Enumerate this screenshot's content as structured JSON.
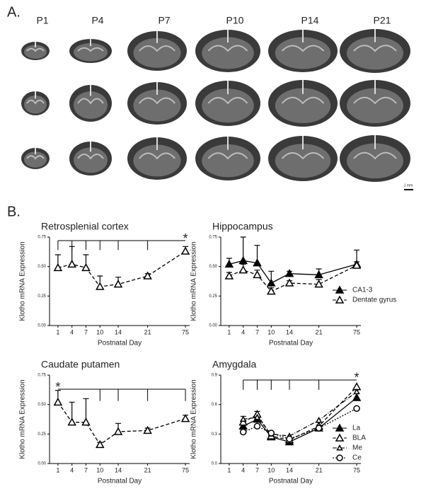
{
  "panel_a": {
    "label": "A.",
    "columns": [
      "P1",
      "P4",
      "P7",
      "P10",
      "P14",
      "P21"
    ],
    "scale_bar": "1 mm"
  },
  "panel_b_label": "B.",
  "chart_data": [
    {
      "type": "line",
      "title": "Retrosplenial cortex",
      "x_label": "Postnatal Day",
      "y_label": "Klotho mRNA Expression",
      "categories": [
        "1",
        "4",
        "7",
        "10",
        "14",
        "21",
        "75"
      ],
      "ylim": [
        0,
        0.75
      ],
      "yticks": [
        {
          "value": 0,
          "label": "0.00"
        },
        {
          "value": 0.25,
          "label": "0.25"
        },
        {
          "value": 0.5,
          "label": "0.50"
        },
        {
          "value": 0.75,
          "label": "0.75"
        }
      ],
      "annotation": "*",
      "series": [
        {
          "color": "#000000",
          "marker": "triangle-open",
          "dash": "dashed",
          "values": [
            0.49,
            0.52,
            0.49,
            0.33,
            0.35,
            0.42,
            0.63
          ],
          "errors": [
            0.11,
            0.15,
            0.11,
            0.09,
            0.06,
            0.02,
            0.04
          ]
        }
      ]
    },
    {
      "type": "line",
      "title": "Hippocampus",
      "x_label": "Postnatal Day",
      "y_label": "Klotho mRNA Expression",
      "categories": [
        "1",
        "4",
        "7",
        "10",
        "14",
        "21",
        "75"
      ],
      "ylim": [
        0,
        0.75
      ],
      "yticks": [
        {
          "value": 0,
          "label": "0.00"
        },
        {
          "value": 0.25,
          "label": "0.25"
        },
        {
          "value": 0.5,
          "label": "0.50"
        },
        {
          "value": 0.75,
          "label": "0.75"
        }
      ],
      "legend": "bottom-right",
      "series": [
        {
          "name": "CA1-3",
          "color": "#000000",
          "marker": "triangle-filled",
          "dash": "solid",
          "values": [
            0.52,
            0.55,
            0.53,
            0.36,
            0.44,
            0.43,
            0.52
          ],
          "errors": [
            0.05,
            0.2,
            0.15,
            0.1,
            0.02,
            0.05,
            0.12
          ]
        },
        {
          "name": "Dentate gyrus",
          "color": "#000000",
          "marker": "triangle-open",
          "dash": "dashed",
          "values": [
            0.42,
            0.47,
            0.43,
            0.29,
            0.36,
            0.35,
            0.51
          ],
          "errors": [
            0.03,
            0.05,
            0.04,
            0.03,
            0.02,
            0.04,
            0.03
          ]
        }
      ]
    },
    {
      "type": "line",
      "title": "Caudate putamen",
      "x_label": "Postnatal Day",
      "y_label": "Klotho mRNA Expression",
      "categories": [
        "1",
        "4",
        "7",
        "10",
        "14",
        "21",
        "75"
      ],
      "ylim": [
        0,
        0.75
      ],
      "yticks": [
        {
          "value": 0,
          "label": "0.00"
        },
        {
          "value": 0.25,
          "label": "0.25"
        },
        {
          "value": 0.5,
          "label": "0.50"
        },
        {
          "value": 0.75,
          "label": "0.75"
        }
      ],
      "annotation": "*",
      "series": [
        {
          "color": "#000000",
          "marker": "triangle-open",
          "dash": "dashed",
          "values": [
            0.52,
            0.35,
            0.35,
            0.16,
            0.27,
            0.28,
            0.38
          ],
          "errors": [
            0.1,
            0.17,
            0.2,
            0.02,
            0.07,
            0.02,
            0.03
          ]
        }
      ]
    },
    {
      "type": "line",
      "title": "Amygdala",
      "x_label": "Postnatal Day",
      "y_label": "Klotho mRNA Expression",
      "categories": [
        "1",
        "4",
        "7",
        "10",
        "14",
        "21",
        "75"
      ],
      "ylim": [
        0,
        0.9
      ],
      "yticks": [
        {
          "value": 0,
          "label": "0.0"
        },
        {
          "value": 0.3,
          "label": "0.3"
        },
        {
          "value": 0.6,
          "label": "0.6"
        },
        {
          "value": 0.9,
          "label": "0.9"
        }
      ],
      "annotation": "*",
      "legend": "bottom-right",
      "series": [
        {
          "name": "La",
          "color": "#000000",
          "marker": "triangle-filled",
          "dash": "solid",
          "values": [
            null,
            0.38,
            0.45,
            0.27,
            0.22,
            0.36,
            0.67
          ],
          "errors": [
            null,
            0.1,
            0.08,
            0.04,
            0.02,
            0.03,
            0.08
          ]
        },
        {
          "name": "BLA",
          "color": "#000000",
          "marker": "triangle-open",
          "dash": "dashed",
          "values": [
            null,
            0.42,
            0.5,
            0.28,
            0.24,
            0.38,
            0.78
          ]
        },
        {
          "name": "Me",
          "color": "#000000",
          "marker": "triangle-open-small",
          "dash": "dashdot",
          "values": [
            null,
            0.45,
            0.47,
            0.3,
            0.28,
            0.44,
            0.73
          ]
        },
        {
          "name": "Ce",
          "color": "#000000",
          "marker": "circle-open",
          "dash": "dotted",
          "values": [
            null,
            0.32,
            0.38,
            0.31,
            0.25,
            0.36,
            0.56
          ]
        }
      ]
    }
  ]
}
